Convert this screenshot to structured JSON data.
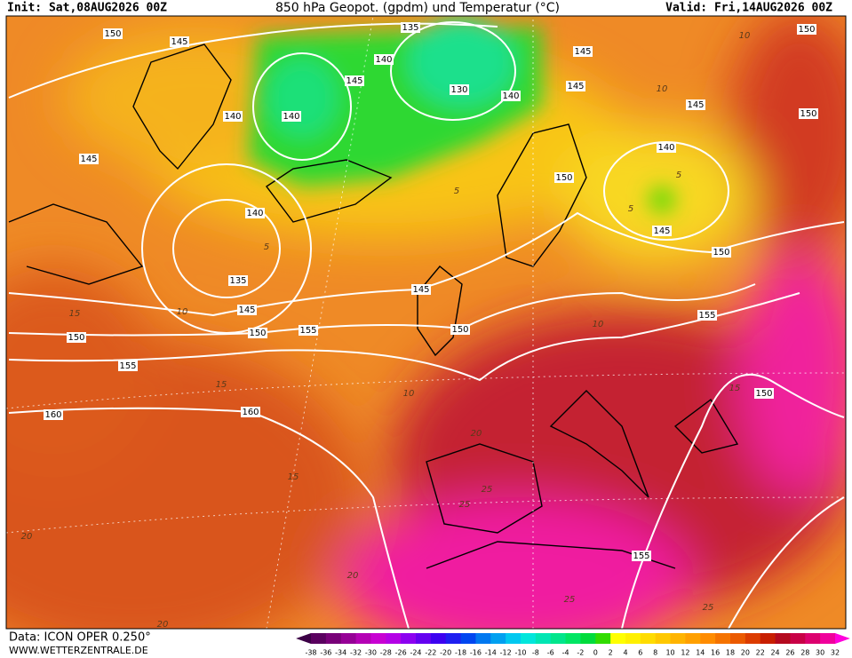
{
  "header": {
    "init": "Init: Sat,08AUG2026 00Z",
    "title": "850 hPa Geopot. (gpdm) und Temperatur (°C)",
    "valid": "Valid: Fri,14AUG2026 00Z"
  },
  "footer": {
    "data": "Data: ICON OPER 0.250°",
    "site": "WWW.WETTERZENTRALE.DE"
  },
  "colorbar": {
    "labels": [
      -38,
      -36,
      -34,
      -32,
      -30,
      -28,
      -26,
      -24,
      -22,
      -20,
      -18,
      -16,
      -14,
      -12,
      -10,
      -8,
      -6,
      -4,
      -2,
      0,
      2,
      4,
      6,
      8,
      10,
      12,
      14,
      16,
      18,
      20,
      22,
      24,
      26,
      28,
      30,
      32
    ],
    "colors": [
      "#3c0046",
      "#5a005f",
      "#780078",
      "#960096",
      "#b400b4",
      "#c800d2",
      "#b400e6",
      "#8c00f0",
      "#6400f0",
      "#3c00f0",
      "#1e1ef0",
      "#0046f0",
      "#0078f0",
      "#00a0f0",
      "#00c8f0",
      "#00e6dc",
      "#00e6b4",
      "#00e68c",
      "#00e664",
      "#00dc3c",
      "#32dc00",
      "#ffff00",
      "#fff000",
      "#ffdc00",
      "#ffc800",
      "#ffb400",
      "#ffa000",
      "#ff8c00",
      "#f57300",
      "#eb5a00",
      "#dc3c00",
      "#c81e00",
      "#b40a1e",
      "#c80046",
      "#dc006e",
      "#f0009b",
      "#ff00dc"
    ]
  },
  "geopotential_labels": [
    "150",
    "145",
    "135",
    "140",
    "145",
    "140",
    "140",
    "130",
    "140",
    "145",
    "145",
    "150",
    "150",
    "145",
    "140",
    "150",
    "145",
    "150",
    "145",
    "140",
    "135",
    "145",
    "150",
    "150",
    "155",
    "145",
    "150",
    "155",
    "150",
    "155",
    "160",
    "160",
    "155"
  ],
  "temperature_labels": [
    "10",
    "10",
    "5",
    "5",
    "10",
    "15",
    "15",
    "10",
    "15",
    "10",
    "20",
    "25",
    "25",
    "15",
    "20",
    "20",
    "20",
    "25",
    "25",
    "5",
    "5"
  ]
}
